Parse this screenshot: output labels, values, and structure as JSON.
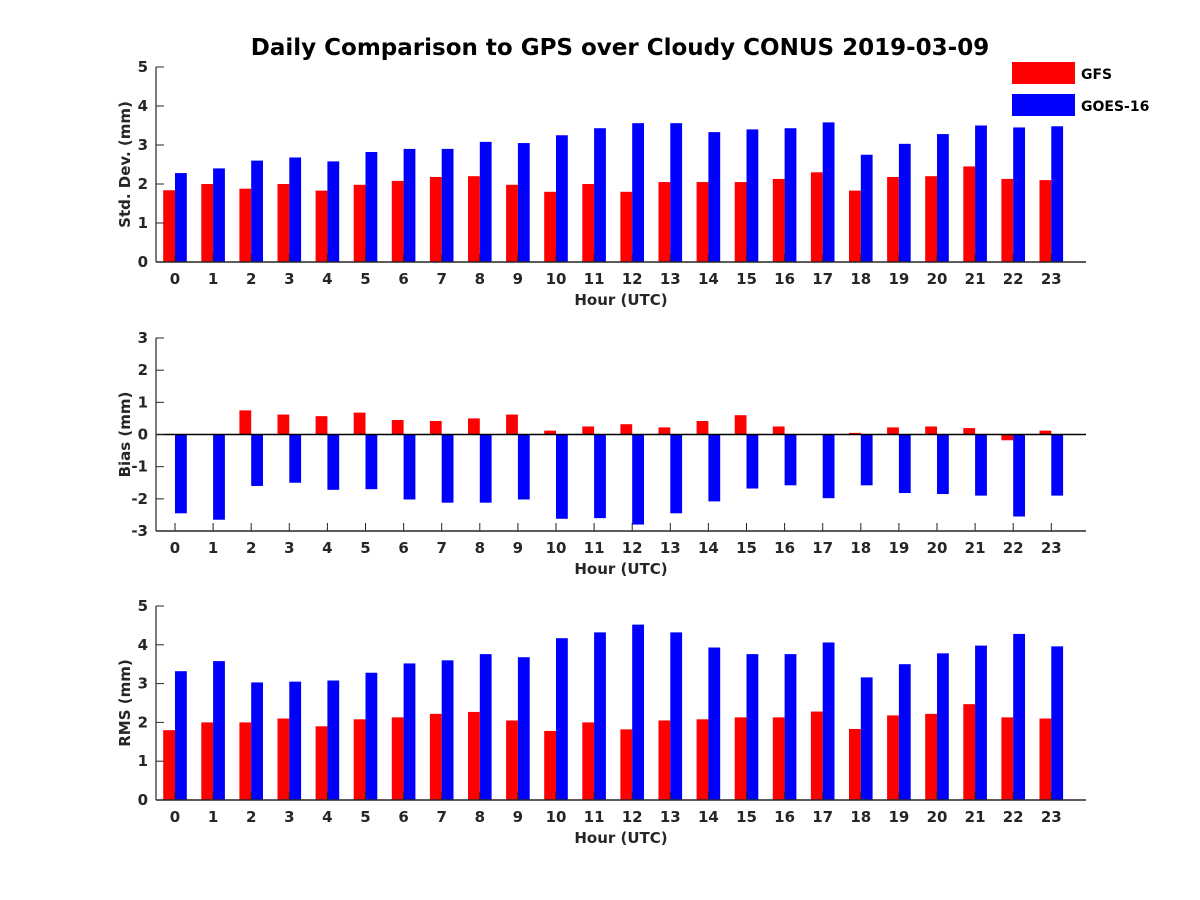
{
  "chart_data": {
    "title": "Daily Comparison to GPS over Cloudy CONUS 2019-03-09",
    "type": "bar",
    "legend": {
      "placement": "top-right",
      "entries": [
        {
          "name": "GFS",
          "color": "#ff0000"
        },
        {
          "name": "GOES-16",
          "color": "#0000ff"
        }
      ]
    },
    "categories": [
      "0",
      "1",
      "2",
      "3",
      "4",
      "5",
      "6",
      "7",
      "8",
      "9",
      "10",
      "11",
      "12",
      "13",
      "14",
      "15",
      "16",
      "17",
      "18",
      "19",
      "20",
      "21",
      "22",
      "23"
    ],
    "panels": [
      {
        "ylabel": "Std. Dev. (mm)",
        "xlabel": "Hour (UTC)",
        "ylim": [
          0,
          5
        ],
        "yticks": [
          "0",
          "1",
          "2",
          "3",
          "4",
          "5"
        ],
        "series": [
          {
            "name": "GFS",
            "color": "#ff0000",
            "values": [
              1.84,
              2.0,
              1.88,
              2.0,
              1.83,
              1.98,
              2.08,
              2.18,
              2.2,
              1.98,
              1.8,
              2.0,
              1.8,
              2.05,
              2.05,
              2.05,
              2.13,
              2.3,
              1.83,
              2.18,
              2.2,
              2.45,
              2.13,
              2.1
            ]
          },
          {
            "name": "GOES-16",
            "color": "#0000ff",
            "values": [
              2.28,
              2.4,
              2.6,
              2.68,
              2.58,
              2.82,
              2.9,
              2.9,
              3.08,
              3.05,
              3.25,
              3.43,
              3.56,
              3.56,
              3.33,
              3.4,
              3.43,
              3.58,
              2.75,
              3.03,
              3.28,
              3.5,
              3.45,
              3.48
            ]
          }
        ]
      },
      {
        "ylabel": "Bias (mm)",
        "xlabel": "Hour (UTC)",
        "ylim": [
          -3,
          3
        ],
        "yticks": [
          "-3",
          "-2",
          "-1",
          "0",
          "1",
          "2",
          "3"
        ],
        "series": [
          {
            "name": "GFS",
            "color": "#ff0000",
            "values": [
              0.0,
              0.0,
              0.75,
              0.62,
              0.57,
              0.68,
              0.45,
              0.42,
              0.5,
              0.62,
              0.12,
              0.25,
              0.32,
              0.22,
              0.42,
              0.6,
              0.25,
              0.0,
              0.05,
              0.22,
              0.25,
              0.2,
              -0.18,
              0.12
            ]
          },
          {
            "name": "GOES-16",
            "color": "#0000ff",
            "values": [
              -2.45,
              -2.65,
              -1.6,
              -1.5,
              -1.72,
              -1.7,
              -2.02,
              -2.12,
              -2.12,
              -2.02,
              -2.62,
              -2.6,
              -2.8,
              -2.45,
              -2.08,
              -1.68,
              -1.58,
              -1.98,
              -1.58,
              -1.82,
              -1.85,
              -1.9,
              -2.55,
              -1.9
            ]
          }
        ]
      },
      {
        "ylabel": "RMS (mm)",
        "xlabel": "Hour (UTC)",
        "ylim": [
          0,
          5
        ],
        "yticks": [
          "0",
          "1",
          "2",
          "3",
          "4",
          "5"
        ],
        "series": [
          {
            "name": "GFS",
            "color": "#ff0000",
            "values": [
              1.8,
              2.0,
              2.0,
              2.1,
              1.9,
              2.08,
              2.13,
              2.22,
              2.27,
              2.05,
              1.78,
              2.0,
              1.82,
              2.05,
              2.08,
              2.13,
              2.13,
              2.28,
              1.83,
              2.18,
              2.22,
              2.47,
              2.13,
              2.1
            ]
          },
          {
            "name": "GOES-16",
            "color": "#0000ff",
            "values": [
              3.32,
              3.58,
              3.03,
              3.05,
              3.08,
              3.28,
              3.52,
              3.6,
              3.76,
              3.68,
              4.17,
              4.32,
              4.52,
              4.32,
              3.93,
              3.76,
              3.76,
              4.06,
              3.16,
              3.5,
              3.78,
              3.98,
              4.28,
              3.96
            ]
          }
        ]
      }
    ]
  }
}
